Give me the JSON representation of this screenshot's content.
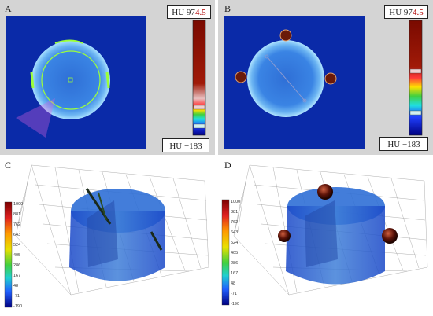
{
  "panels": {
    "A": {
      "label": "A",
      "hu_max_prefix": "HU 97",
      "hu_max_mid": "4.5",
      "hu_min": "HU −183"
    },
    "B": {
      "label": "B",
      "hu_max_prefix": "HU 97",
      "hu_max_mid": "4.5",
      "hu_min": "HU −183"
    },
    "C": {
      "label": "C"
    },
    "D": {
      "label": "D"
    }
  },
  "colorbar": {
    "ticks": [
      "1000",
      "881",
      "762",
      "643",
      "524",
      "405",
      "286",
      "167",
      "48",
      "-71",
      "-190"
    ]
  },
  "colors": {
    "panel_bg": "#d4d4d4",
    "ct_blue": "#0a2aa8",
    "phantom": "#3f7fd8",
    "marker": "#7a1a0a",
    "mesh": "#8a8a8a"
  }
}
